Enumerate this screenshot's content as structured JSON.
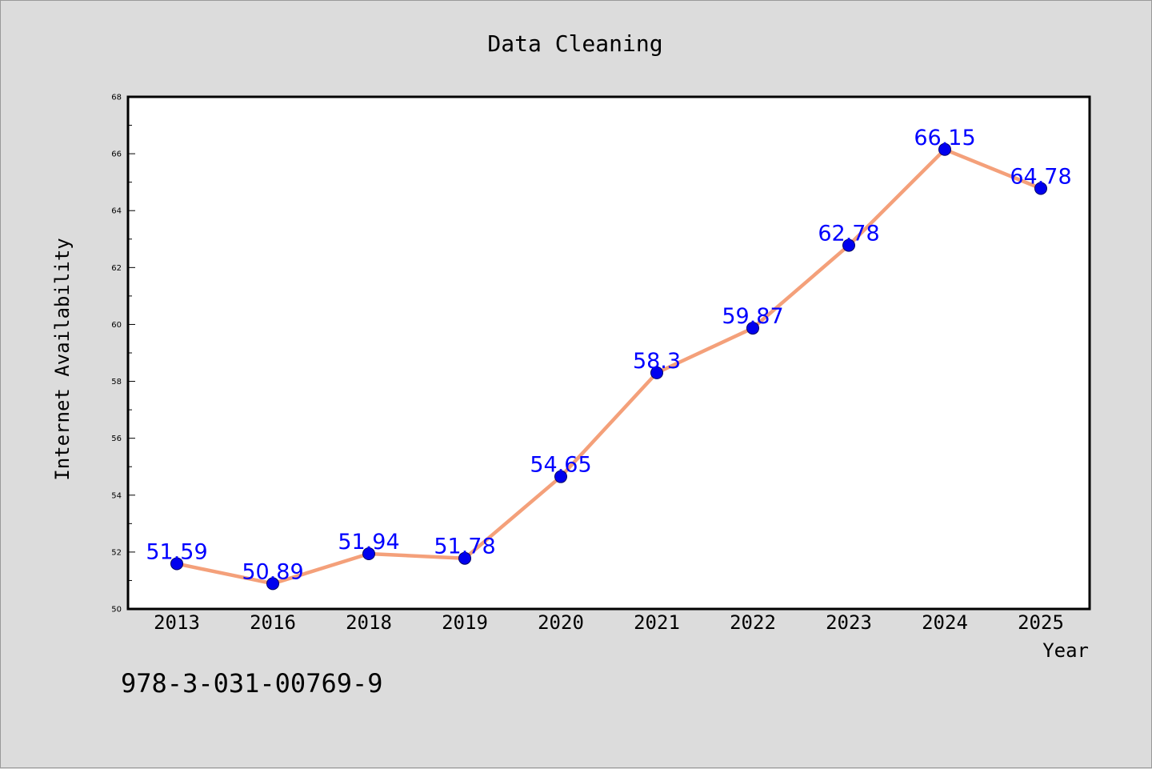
{
  "chart_data": {
    "type": "line",
    "title": "Data Cleaning",
    "xlabel": "Year",
    "ylabel": "Internet Availability",
    "categories": [
      "2013",
      "2016",
      "2018",
      "2019",
      "2020",
      "2021",
      "2022",
      "2023",
      "2024",
      "2025"
    ],
    "series": [
      {
        "values": [
          51.59,
          50.89,
          51.94,
          51.78,
          54.65,
          58.3,
          59.87,
          62.78,
          66.15,
          64.78
        ],
        "labels": [
          "51.59",
          "50.89",
          "51.94",
          "51.78",
          "54.65",
          "58.3",
          "59.87",
          "62.78",
          "66.15",
          "64.78"
        ],
        "line_color": "#f4a07a",
        "marker_color": "#0000ee",
        "label_color": "#0000ff"
      }
    ],
    "ylim": [
      50,
      68
    ],
    "yticks": [
      "50",
      "52",
      "54",
      "56",
      "58",
      "60",
      "62",
      "64",
      "66",
      "68"
    ],
    "grid": false,
    "legend": "none"
  },
  "footer_note": "978-3-031-00769-9"
}
